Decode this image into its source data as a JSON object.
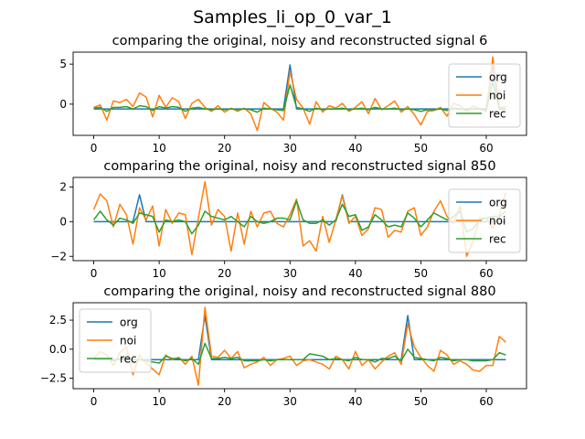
{
  "figure": {
    "suptitle": "Samples_li_op_0_var_1"
  },
  "colors": {
    "org": "#1f77b4",
    "noi": "#ff7f0e",
    "rec": "#2ca02c",
    "axis": "#000000",
    "legend_border": "#cccccc"
  },
  "chart_data": [
    {
      "type": "line",
      "title": "comparing the original, noisy and reconstructed signal 6",
      "xlabel": "",
      "ylabel": "",
      "xlim": [
        -3.15,
        66.15
      ],
      "ylim": [
        -3.9,
        6.5
      ],
      "xticks": [
        0,
        10,
        20,
        30,
        40,
        50,
        60
      ],
      "yticks": [
        0,
        5
      ],
      "ytick_labels": [
        "0",
        "5"
      ],
      "legend": "right",
      "grid": false,
      "x": [
        0,
        1,
        2,
        3,
        4,
        5,
        6,
        7,
        8,
        9,
        10,
        11,
        12,
        13,
        14,
        15,
        16,
        17,
        18,
        19,
        20,
        21,
        22,
        23,
        24,
        25,
        26,
        27,
        28,
        29,
        30,
        31,
        32,
        33,
        34,
        35,
        36,
        37,
        38,
        39,
        40,
        41,
        42,
        43,
        44,
        45,
        46,
        47,
        48,
        49,
        50,
        51,
        52,
        53,
        54,
        55,
        56,
        57,
        58,
        59,
        60,
        61,
        62,
        63
      ],
      "series": [
        {
          "name": "org",
          "values": [
            -0.6,
            -0.6,
            -0.6,
            -0.6,
            -0.6,
            -0.6,
            -0.6,
            -0.6,
            -0.6,
            -0.6,
            -0.6,
            -0.6,
            -0.6,
            -0.6,
            -0.6,
            -0.6,
            -0.6,
            -0.6,
            -0.6,
            -0.6,
            -0.6,
            -0.6,
            -0.6,
            -0.6,
            -0.6,
            -0.6,
            -0.6,
            -0.6,
            -0.6,
            -0.6,
            4.9,
            -0.6,
            -0.6,
            -0.6,
            -0.6,
            -0.6,
            -0.6,
            -0.6,
            -0.6,
            -0.6,
            -0.6,
            -0.6,
            -0.6,
            -0.6,
            -0.6,
            -0.6,
            -0.6,
            -0.6,
            -0.6,
            -0.6,
            -0.6,
            -0.6,
            -0.6,
            -0.6,
            -0.6,
            -0.6,
            -0.6,
            -0.6,
            -0.6,
            -0.6,
            -0.6,
            5.0,
            -0.6,
            -0.6
          ]
        },
        {
          "name": "noi",
          "values": [
            -0.4,
            -0.1,
            -2.0,
            0.4,
            0.2,
            0.6,
            -0.3,
            1.4,
            0.9,
            -1.6,
            1.1,
            -0.4,
            0.8,
            0.3,
            -1.8,
            0.1,
            0.6,
            -0.4,
            -0.9,
            -0.2,
            -1.0,
            -0.5,
            -0.9,
            -0.5,
            -1.2,
            -3.3,
            0.2,
            -0.5,
            -1.0,
            -2.0,
            4.1,
            0.6,
            -0.5,
            -2.5,
            0.3,
            -1.0,
            -0.2,
            -0.5,
            0.1,
            -0.9,
            -0.4,
            0.3,
            -1.2,
            0.7,
            -0.7,
            -0.2,
            0.4,
            -1.0,
            -0.3,
            -1.3,
            -2.6,
            -0.9,
            -0.8,
            -0.4,
            -1.5,
            0.1,
            -0.2,
            -0.9,
            -0.2,
            -0.6,
            -0.9,
            5.9,
            -0.5,
            -0.3
          ]
        },
        {
          "name": "rec",
          "values": [
            -0.5,
            -0.4,
            -0.9,
            -0.4,
            -0.4,
            -0.3,
            -0.6,
            -0.2,
            -0.3,
            -0.8,
            -0.3,
            -0.5,
            -0.3,
            -0.4,
            -0.9,
            -0.5,
            -0.4,
            -0.6,
            -0.7,
            -0.6,
            -0.7,
            -0.6,
            -0.7,
            -0.6,
            -0.7,
            -1.0,
            -0.5,
            -0.6,
            -0.7,
            -0.8,
            2.4,
            -0.4,
            -0.6,
            -0.9,
            -0.5,
            -0.7,
            -0.6,
            -0.6,
            -0.5,
            -0.7,
            -0.6,
            -0.5,
            -0.7,
            -0.4,
            -0.6,
            -0.6,
            -0.5,
            -0.7,
            -0.6,
            -0.7,
            -0.9,
            -0.7,
            -0.7,
            -0.6,
            -0.8,
            -0.5,
            -0.6,
            -0.7,
            -0.6,
            -0.6,
            -0.7,
            2.8,
            -0.6,
            -0.6
          ]
        }
      ]
    },
    {
      "type": "line",
      "title": "comparing the original, noisy and reconstructed signal 850",
      "xlabel": "",
      "ylabel": "",
      "xlim": [
        -3.15,
        66.15
      ],
      "ylim": [
        -2.25,
        2.55
      ],
      "xticks": [
        0,
        10,
        20,
        30,
        40,
        50,
        60
      ],
      "yticks": [
        -2,
        0,
        2
      ],
      "ytick_labels": [
        "−2",
        "0",
        "2"
      ],
      "legend": "right",
      "grid": false,
      "x": [
        0,
        1,
        2,
        3,
        4,
        5,
        6,
        7,
        8,
        9,
        10,
        11,
        12,
        13,
        14,
        15,
        16,
        17,
        18,
        19,
        20,
        21,
        22,
        23,
        24,
        25,
        26,
        27,
        28,
        29,
        30,
        31,
        32,
        33,
        34,
        35,
        36,
        37,
        38,
        39,
        40,
        41,
        42,
        43,
        44,
        45,
        46,
        47,
        48,
        49,
        50,
        51,
        52,
        53,
        54,
        55,
        56,
        57,
        58,
        59,
        60,
        61,
        62,
        63
      ],
      "series": [
        {
          "name": "org",
          "values": [
            0,
            0,
            0,
            0,
            0,
            0,
            0,
            1.55,
            0,
            0,
            0,
            0,
            0,
            0,
            0,
            0,
            0,
            0,
            0,
            0,
            0,
            0,
            0,
            0,
            0,
            0,
            0,
            0,
            0,
            0,
            0,
            0,
            0,
            0,
            0,
            0,
            0,
            0,
            1.55,
            0,
            0,
            0,
            0,
            0,
            0,
            0,
            0,
            0,
            0,
            0,
            0,
            0,
            0,
            0,
            0,
            0,
            0,
            0,
            0,
            0,
            0,
            0,
            0,
            0
          ]
        },
        {
          "name": "noi",
          "values": [
            0.7,
            1.6,
            1.2,
            -0.3,
            1.0,
            0.4,
            -1.3,
            0.8,
            0.1,
            0.9,
            -1.4,
            0.7,
            -0.1,
            0.5,
            0.4,
            -1.9,
            0.2,
            2.3,
            -0.2,
            0.7,
            0.3,
            -1.7,
            0.5,
            -1.3,
            0.6,
            -0.3,
            0.5,
            0.6,
            -0.1,
            -0.3,
            0.4,
            1.3,
            -1.4,
            -1.1,
            -1.7,
            0.3,
            -1.2,
            0.1,
            1.5,
            -0.1,
            0.3,
            -0.8,
            -0.4,
            0.8,
            0.7,
            -0.9,
            -0.5,
            -0.6,
            0.6,
            0.8,
            -0.8,
            -0.3,
            0.6,
            1.2,
            0.3,
            -0.1,
            0.9,
            -2.0,
            -1.1,
            0.2,
            0.2,
            -0.4,
            0.4,
            1.7
          ]
        },
        {
          "name": "rec",
          "values": [
            0.1,
            0.6,
            0.1,
            -0.2,
            0.2,
            0.1,
            -0.1,
            0.5,
            0.4,
            0.3,
            -0.6,
            0.1,
            0.0,
            0.1,
            0.0,
            -0.7,
            -0.2,
            0.6,
            0.3,
            0.2,
            0.1,
            0.3,
            0.0,
            -0.3,
            0.3,
            0.0,
            -0.1,
            0.0,
            0.2,
            0.2,
            0.1,
            1.2,
            0.1,
            -0.1,
            -0.1,
            0.1,
            -0.2,
            0.1,
            1.0,
            0.3,
            0.4,
            -0.5,
            -0.3,
            0.4,
            0.1,
            -0.3,
            -0.2,
            -0.3,
            0.5,
            0.2,
            -0.3,
            0.1,
            0.5,
            0.3,
            0.1,
            0.3,
            0.6,
            -0.6,
            -0.4,
            0.1,
            0.2,
            0.3,
            0.3,
            0.6
          ]
        }
      ]
    },
    {
      "type": "line",
      "title": "comparing the original, noisy and reconstructed signal 880",
      "xlabel": "",
      "ylabel": "",
      "xlim": [
        -3.15,
        66.15
      ],
      "ylim": [
        -3.4,
        4.0
      ],
      "xticks": [
        0,
        10,
        20,
        30,
        40,
        50,
        60
      ],
      "yticks": [
        -2.5,
        0.0,
        2.5
      ],
      "ytick_labels": [
        "−2.5",
        "0.0",
        "2.5"
      ],
      "legend": "upper left",
      "grid": false,
      "x": [
        0,
        1,
        2,
        3,
        4,
        5,
        6,
        7,
        8,
        9,
        10,
        11,
        12,
        13,
        14,
        15,
        16,
        17,
        18,
        19,
        20,
        21,
        22,
        23,
        24,
        25,
        26,
        27,
        28,
        29,
        30,
        31,
        32,
        33,
        34,
        35,
        36,
        37,
        38,
        39,
        40,
        41,
        42,
        43,
        44,
        45,
        46,
        47,
        48,
        49,
        50,
        51,
        52,
        53,
        54,
        55,
        56,
        57,
        58,
        59,
        60,
        61,
        62,
        63
      ],
      "series": [
        {
          "name": "org",
          "values": [
            -0.9,
            -0.9,
            -0.9,
            -0.9,
            -0.9,
            -0.9,
            -0.9,
            -0.9,
            -0.9,
            -0.9,
            -0.9,
            -0.9,
            -0.9,
            -0.9,
            -0.9,
            -0.9,
            -0.9,
            2.9,
            -0.9,
            -0.9,
            -0.9,
            -0.9,
            -0.9,
            -0.9,
            -0.9,
            -0.9,
            -0.9,
            -0.9,
            -0.9,
            -0.9,
            -0.9,
            -0.9,
            -0.9,
            -0.9,
            -0.9,
            -0.9,
            -0.9,
            -0.9,
            -0.9,
            -0.9,
            -0.9,
            -0.9,
            -0.9,
            -0.9,
            -0.9,
            -0.9,
            -0.9,
            -0.9,
            2.9,
            -0.9,
            -0.9,
            -0.9,
            -0.9,
            -0.9,
            -0.9,
            -0.9,
            -0.9,
            -0.9,
            -0.9,
            -0.9,
            -0.9,
            -0.9,
            -0.9,
            -0.9
          ]
        },
        {
          "name": "noi",
          "values": [
            -0.8,
            -0.2,
            -0.5,
            -1.4,
            -0.3,
            0.2,
            -2.2,
            -0.5,
            -1.2,
            -1.7,
            -2.2,
            -0.5,
            -0.9,
            -0.7,
            -1.3,
            -0.6,
            -3.1,
            3.6,
            -0.6,
            -0.7,
            -0.1,
            -0.8,
            -0.2,
            -1.6,
            -1.3,
            -1.1,
            -0.7,
            -1.4,
            -0.9,
            -0.8,
            -0.6,
            -1.4,
            -1.0,
            -0.9,
            -1.1,
            -1.3,
            -1.7,
            -0.6,
            -0.9,
            -1.7,
            -0.2,
            -1.4,
            -0.9,
            -1.7,
            -1.1,
            -0.6,
            -0.3,
            -1.3,
            2.2,
            0.2,
            -0.7,
            -1.4,
            -1.9,
            -0.1,
            -0.5,
            -1.3,
            -1.0,
            -1.3,
            -1.8,
            -1.9,
            -1.4,
            -1.4,
            1.1,
            0.6
          ]
        },
        {
          "name": "rec",
          "values": [
            -0.8,
            -0.8,
            -0.8,
            -1.0,
            -0.8,
            -0.7,
            -1.2,
            -0.9,
            -1.0,
            -1.1,
            -1.2,
            -0.6,
            -0.8,
            -0.8,
            -1.0,
            -0.8,
            -1.3,
            0.5,
            -0.8,
            -0.8,
            -0.7,
            -0.8,
            -0.7,
            -1.0,
            -1.0,
            -1.0,
            -0.9,
            -1.0,
            -0.9,
            -0.9,
            -0.9,
            -0.9,
            -0.9,
            -0.4,
            -0.5,
            -0.6,
            -0.9,
            -0.8,
            -0.9,
            -1.0,
            -0.7,
            -0.9,
            -0.9,
            -1.1,
            -0.8,
            -0.8,
            -0.6,
            -1.0,
            0.0,
            -0.7,
            -0.8,
            -0.9,
            -1.0,
            -0.7,
            -0.8,
            -1.0,
            -0.9,
            -0.9,
            -1.0,
            -1.0,
            -1.0,
            -0.9,
            -0.3,
            -0.5
          ]
        }
      ]
    }
  ]
}
